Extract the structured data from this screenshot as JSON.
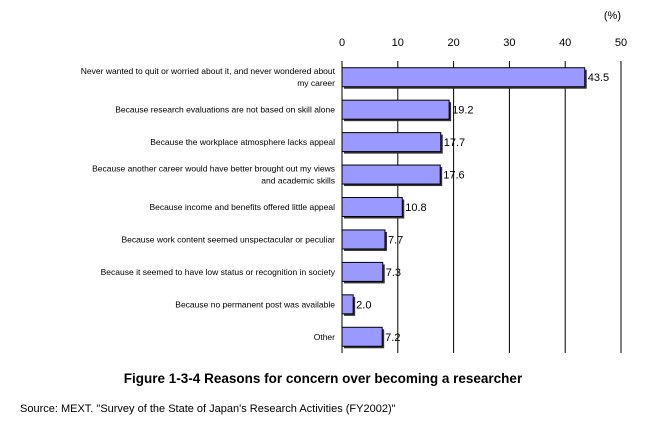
{
  "chart_data": {
    "type": "bar",
    "orientation": "horizontal",
    "unit": "(%)",
    "xlim": [
      0,
      50
    ],
    "x_ticks": [
      0,
      10,
      20,
      30,
      40,
      50
    ],
    "categories": [
      [
        "Never wanted to quit or worried about it, and never wondered about",
        "my career"
      ],
      [
        "Because research evaluations are not based on skill alone"
      ],
      [
        "Because the workplace atmosphere lacks appeal"
      ],
      [
        "Because another career would have better brought out my views",
        "and academic skills"
      ],
      [
        "Because income and benefits offered little appeal"
      ],
      [
        "Because work content seemed unspectacular or peculiar"
      ],
      [
        "Because it seemed to have low status or recognition in society"
      ],
      [
        "Because no permanent post was available"
      ],
      [
        "Other"
      ]
    ],
    "values": [
      43.5,
      19.2,
      17.7,
      17.6,
      10.8,
      7.7,
      7.3,
      2.0,
      7.2
    ],
    "value_labels": [
      "43.5",
      "19.2",
      "17.7",
      "17.6",
      "10.8",
      "7.7",
      "7.3",
      "2.0",
      "7.2"
    ],
    "bar_color": "#9999ff",
    "grid": true,
    "title": "Figure 1-3-4  Reasons for concern over becoming a researcher",
    "source": "Source: MEXT. \"Survey of the State of Japan's Research Activities (FY2002)\""
  }
}
